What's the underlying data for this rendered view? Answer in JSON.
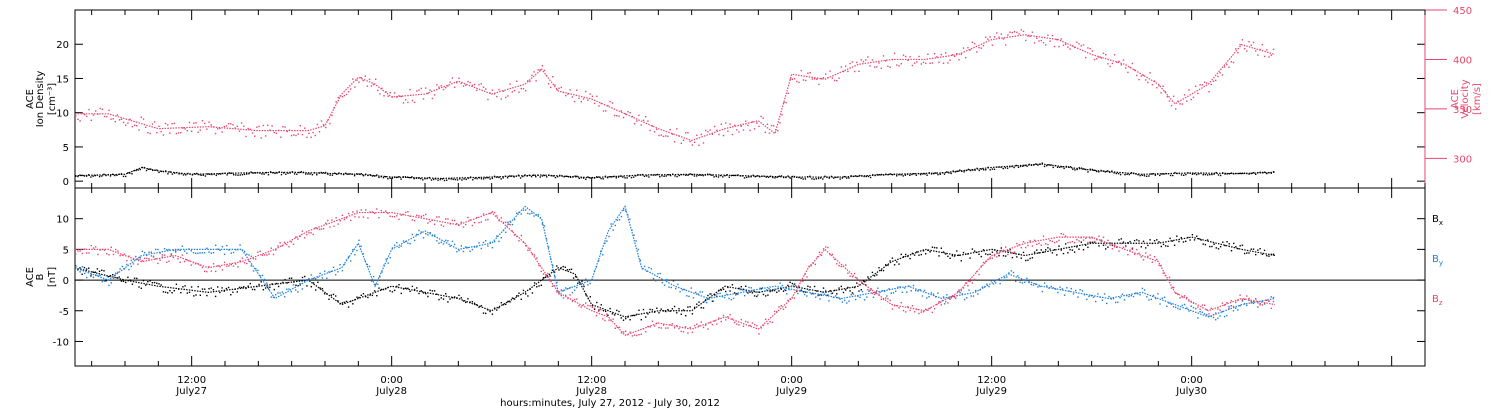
{
  "colors": {
    "axis": "#000000",
    "pink": "#e8466f",
    "blue": "#1e7fd8",
    "black": "#000000"
  },
  "chart_data": [
    {
      "type": "scatter",
      "panel": "top",
      "xlabel": "hours:minutes, July 27, 2012 - July 30, 2012",
      "x_ticks": [
        {
          "time": "12:00",
          "date": "July27",
          "hours": 12
        },
        {
          "time": "0:00",
          "date": "July28",
          "hours": 24
        },
        {
          "time": "12:00",
          "date": "July28",
          "hours": 36
        },
        {
          "time": "0:00",
          "date": "July29",
          "hours": 48
        },
        {
          "time": "12:00",
          "date": "July29",
          "hours": 60
        },
        {
          "time": "0:00",
          "date": "July30",
          "hours": 72
        }
      ],
      "xlim_hours": [
        5,
        86
      ],
      "left_axis": {
        "label_lines": [
          "ACE",
          "Ion Density",
          "[cm⁻³]"
        ],
        "ylim": [
          -1,
          25
        ],
        "ticks": [
          0,
          5,
          10,
          15,
          20
        ]
      },
      "right_axis": {
        "label_lines": [
          "ACE",
          "Velocity",
          "[km/s]"
        ],
        "ylim": [
          270,
          450
        ],
        "ticks": [
          300,
          350,
          400,
          450
        ]
      },
      "series": [
        {
          "name": "Ion Density",
          "axis": "left",
          "color": "#000000",
          "points": [
            [
              5,
              0.8
            ],
            [
              8,
              1
            ],
            [
              9,
              2
            ],
            [
              10,
              1.5
            ],
            [
              12,
              1
            ],
            [
              15,
              1.2
            ],
            [
              18,
              1.3
            ],
            [
              22,
              1
            ],
            [
              24,
              0.6
            ],
            [
              27,
              0.4
            ],
            [
              30,
              0.6
            ],
            [
              33,
              0.9
            ],
            [
              36,
              0.5
            ],
            [
              39,
              0.9
            ],
            [
              42,
              1
            ],
            [
              45,
              0.8
            ],
            [
              48,
              0.6
            ],
            [
              51,
              0.6
            ],
            [
              54,
              1
            ],
            [
              57,
              1.2
            ],
            [
              60,
              2
            ],
            [
              63,
              2.5
            ],
            [
              66,
              1.6
            ],
            [
              69,
              1
            ],
            [
              72,
              1.2
            ],
            [
              75,
              1.1
            ],
            [
              77,
              1.3
            ]
          ]
        },
        {
          "name": "Velocity",
          "axis": "right",
          "color": "#e8466f",
          "points": [
            [
              5,
              345
            ],
            [
              7,
              345
            ],
            [
              8,
              340
            ],
            [
              10,
              330
            ],
            [
              13,
              332
            ],
            [
              16,
              328
            ],
            [
              19,
              328
            ],
            [
              20,
              333
            ],
            [
              21,
              365
            ],
            [
              22,
              382
            ],
            [
              23,
              375
            ],
            [
              24,
              362
            ],
            [
              26,
              365
            ],
            [
              28,
              378
            ],
            [
              30,
              365
            ],
            [
              32,
              375
            ],
            [
              33,
              390
            ],
            [
              34,
              368
            ],
            [
              36,
              360
            ],
            [
              38,
              345
            ],
            [
              40,
              330
            ],
            [
              42,
              318
            ],
            [
              44,
              330
            ],
            [
              46,
              338
            ],
            [
              47,
              325
            ],
            [
              48,
              385
            ],
            [
              50,
              380
            ],
            [
              52,
              395
            ],
            [
              54,
              400
            ],
            [
              56,
              400
            ],
            [
              58,
              405
            ],
            [
              60,
              420
            ],
            [
              62,
              425
            ],
            [
              64,
              420
            ],
            [
              66,
              405
            ],
            [
              68,
              395
            ],
            [
              70,
              375
            ],
            [
              71,
              355
            ],
            [
              73,
              375
            ],
            [
              75,
              415
            ],
            [
              77,
              405
            ]
          ]
        }
      ]
    },
    {
      "type": "scatter",
      "panel": "bottom",
      "left_axis": {
        "label_lines": [
          "ACE",
          "B",
          "[nT]"
        ],
        "ylim": [
          -14,
          15
        ],
        "ticks": [
          -10,
          -5,
          0,
          5,
          10
        ]
      },
      "zero_line": 0,
      "series": [
        {
          "name": "Bx",
          "color": "#000000",
          "points": [
            [
              5,
              2
            ],
            [
              8,
              0
            ],
            [
              10,
              -1
            ],
            [
              13,
              -2
            ],
            [
              16,
              -1
            ],
            [
              19,
              0
            ],
            [
              21,
              -4
            ],
            [
              22,
              -3
            ],
            [
              24,
              -1
            ],
            [
              26,
              -2
            ],
            [
              28,
              -3
            ],
            [
              30,
              -5
            ],
            [
              32,
              -2
            ],
            [
              34,
              2
            ],
            [
              35,
              1
            ],
            [
              36,
              -4
            ],
            [
              38,
              -6
            ],
            [
              40,
              -5
            ],
            [
              42,
              -5
            ],
            [
              44,
              -1
            ],
            [
              46,
              -2
            ],
            [
              48,
              -1
            ],
            [
              50,
              -2
            ],
            [
              52,
              -1
            ],
            [
              54,
              3
            ],
            [
              56,
              5
            ],
            [
              58,
              4
            ],
            [
              60,
              5
            ],
            [
              62,
              4
            ],
            [
              64,
              5
            ],
            [
              66,
              6
            ],
            [
              68,
              6
            ],
            [
              70,
              6
            ],
            [
              72,
              7
            ],
            [
              75,
              5
            ],
            [
              77,
              4
            ]
          ]
        },
        {
          "name": "By",
          "color": "#1e7fd8",
          "points": [
            [
              5,
              2
            ],
            [
              7,
              0
            ],
            [
              9,
              4
            ],
            [
              11,
              5
            ],
            [
              13,
              5
            ],
            [
              15,
              5
            ],
            [
              17,
              -3
            ],
            [
              19,
              0
            ],
            [
              21,
              2
            ],
            [
              22,
              6
            ],
            [
              23,
              -1
            ],
            [
              24,
              5
            ],
            [
              26,
              8
            ],
            [
              28,
              5
            ],
            [
              30,
              6
            ],
            [
              32,
              12
            ],
            [
              33,
              10
            ],
            [
              34,
              -2
            ],
            [
              36,
              0
            ],
            [
              37,
              8
            ],
            [
              38,
              12
            ],
            [
              39,
              2
            ],
            [
              41,
              -1
            ],
            [
              43,
              -3
            ],
            [
              45,
              -2
            ],
            [
              47,
              -1
            ],
            [
              49,
              -2
            ],
            [
              51,
              -3
            ],
            [
              53,
              -2
            ],
            [
              55,
              -1
            ],
            [
              57,
              -3
            ],
            [
              59,
              -2
            ],
            [
              61,
              1
            ],
            [
              63,
              -1
            ],
            [
              65,
              -2
            ],
            [
              67,
              -3
            ],
            [
              69,
              -2
            ],
            [
              71,
              -4
            ],
            [
              73,
              -6
            ],
            [
              75,
              -4
            ],
            [
              77,
              -3
            ]
          ]
        },
        {
          "name": "Bz",
          "color": "#e8466f",
          "points": [
            [
              5,
              5
            ],
            [
              7,
              5
            ],
            [
              9,
              3
            ],
            [
              11,
              4
            ],
            [
              13,
              2
            ],
            [
              15,
              3
            ],
            [
              17,
              5
            ],
            [
              19,
              8
            ],
            [
              20,
              9
            ],
            [
              21,
              10
            ],
            [
              22,
              11
            ],
            [
              24,
              11
            ],
            [
              26,
              10
            ],
            [
              28,
              9
            ],
            [
              30,
              11
            ],
            [
              32,
              6
            ],
            [
              34,
              -2
            ],
            [
              36,
              -5
            ],
            [
              37,
              -6
            ],
            [
              38,
              -9
            ],
            [
              40,
              -7
            ],
            [
              42,
              -8
            ],
            [
              44,
              -6
            ],
            [
              46,
              -8
            ],
            [
              48,
              -3
            ],
            [
              49,
              2
            ],
            [
              50,
              5
            ],
            [
              52,
              0
            ],
            [
              54,
              -4
            ],
            [
              56,
              -5
            ],
            [
              58,
              -2
            ],
            [
              60,
              4
            ],
            [
              62,
              6
            ],
            [
              64,
              7
            ],
            [
              66,
              7
            ],
            [
              68,
              5
            ],
            [
              70,
              3
            ],
            [
              71,
              -2
            ],
            [
              73,
              -5
            ],
            [
              75,
              -3
            ],
            [
              77,
              -4
            ]
          ]
        }
      ],
      "legend": [
        {
          "label": "B",
          "sub": "x",
          "color": "#000000"
        },
        {
          "label": "B",
          "sub": "y",
          "color": "#1e7fd8"
        },
        {
          "label": "B",
          "sub": "z",
          "color": "#e8466f"
        }
      ]
    }
  ]
}
